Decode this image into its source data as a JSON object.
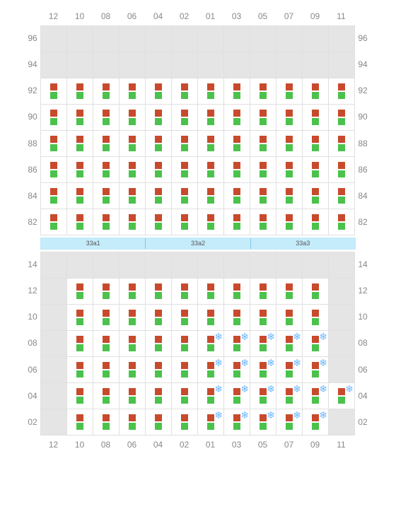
{
  "columns": [
    "12",
    "10",
    "08",
    "06",
    "04",
    "02",
    "01",
    "03",
    "05",
    "07",
    "09",
    "11"
  ],
  "topRows": [
    "96",
    "94",
    "92",
    "90",
    "88",
    "86",
    "84",
    "82"
  ],
  "bottomRows": [
    "14",
    "12",
    "10",
    "08",
    "06",
    "04",
    "02"
  ],
  "divider": [
    "33a1",
    "33a2",
    "33a3"
  ],
  "topGrid": [
    [
      0,
      0,
      0,
      0,
      0,
      0,
      0,
      0,
      0,
      0,
      0,
      0
    ],
    [
      0,
      0,
      0,
      0,
      0,
      0,
      0,
      0,
      0,
      0,
      0,
      0
    ],
    [
      1,
      1,
      1,
      1,
      1,
      1,
      1,
      1,
      1,
      1,
      1,
      1
    ],
    [
      1,
      1,
      1,
      1,
      1,
      1,
      1,
      1,
      1,
      1,
      1,
      1
    ],
    [
      1,
      1,
      1,
      1,
      1,
      1,
      1,
      1,
      1,
      1,
      1,
      1
    ],
    [
      1,
      1,
      1,
      1,
      1,
      1,
      1,
      1,
      1,
      1,
      1,
      1
    ],
    [
      1,
      1,
      1,
      1,
      1,
      1,
      1,
      1,
      1,
      1,
      1,
      1
    ],
    [
      1,
      1,
      1,
      1,
      1,
      1,
      1,
      1,
      1,
      1,
      1,
      1
    ]
  ],
  "bottomGrid": [
    [
      0,
      0,
      0,
      0,
      0,
      0,
      0,
      0,
      0,
      0,
      0,
      0
    ],
    [
      0,
      1,
      1,
      1,
      1,
      1,
      1,
      1,
      1,
      1,
      1,
      0
    ],
    [
      0,
      1,
      1,
      1,
      1,
      1,
      1,
      1,
      1,
      1,
      1,
      0
    ],
    [
      0,
      1,
      1,
      1,
      1,
      1,
      2,
      2,
      2,
      2,
      2,
      0
    ],
    [
      0,
      1,
      1,
      1,
      1,
      1,
      2,
      2,
      2,
      2,
      2,
      0
    ],
    [
      0,
      1,
      1,
      1,
      1,
      1,
      2,
      2,
      2,
      2,
      2,
      2
    ],
    [
      0,
      1,
      1,
      1,
      1,
      1,
      2,
      2,
      2,
      2,
      2,
      0
    ]
  ],
  "colors": {
    "boxTop": "#c84a2c",
    "boxBottom": "#4bc24b",
    "snow": "#6bb8ff",
    "cellBorder": "#e0e0e0",
    "emptyCell": "#e5e5e5",
    "label": "#888888",
    "dividerBg": "#c5ecfb",
    "dividerBorder": "#c0e8f7",
    "dividerSep": "#7fc9e8"
  },
  "layout": {
    "cellSize": 37,
    "boxSize": 10,
    "snowGlyph": "❄"
  }
}
